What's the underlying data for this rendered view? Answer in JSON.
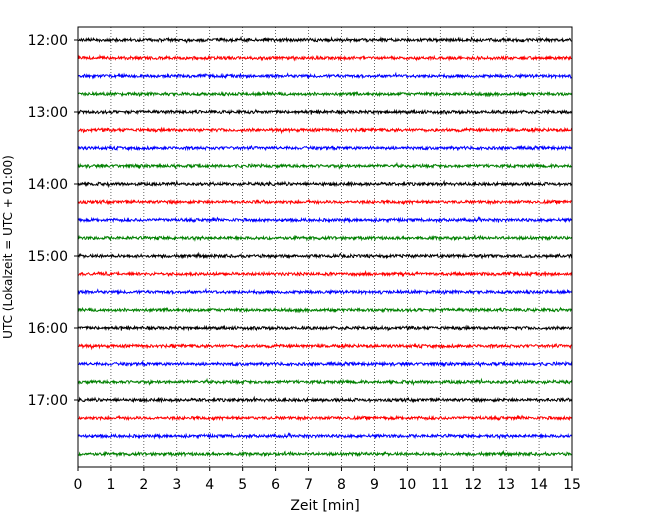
{
  "chart_data": {
    "type": "line",
    "xlabel": "Zeit  [min]",
    "ylabel": "UTC (Lokalzeit = UTC + 01:00)",
    "xlim": [
      0,
      15
    ],
    "x_ticks": [
      "0",
      "1",
      "2",
      "3",
      "4",
      "5",
      "6",
      "7",
      "8",
      "9",
      "10",
      "11",
      "12",
      "13",
      "14",
      "15"
    ],
    "y_tick_labels": [
      "12:00",
      "13:00",
      "14:00",
      "15:00",
      "16:00",
      "17:00"
    ],
    "rows_per_hour": 4,
    "row_count": 24,
    "row_colors": [
      "#000000",
      "#ff0000",
      "#0000ff",
      "#008000"
    ],
    "grid_x": true,
    "grid_style": "dotted"
  }
}
